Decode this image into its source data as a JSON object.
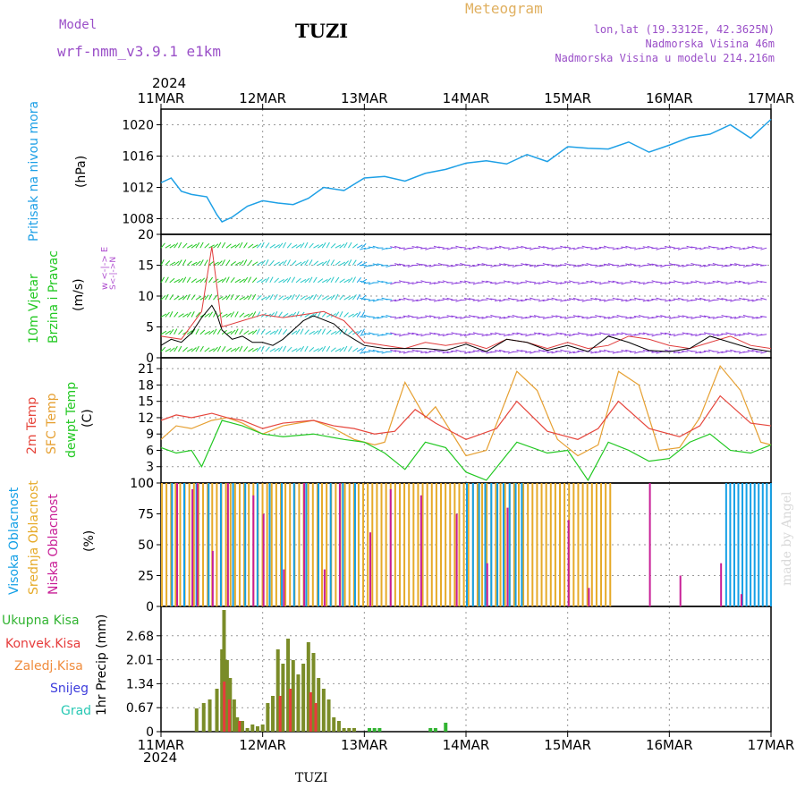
{
  "header": {
    "model_label": "Model",
    "model_name": "wrf-nmm_v3.9.1  e1km",
    "station": "TUZI",
    "meteogram": "Meteogram",
    "lonlat": "lon,lat (19.3312E, 42.3625N)",
    "elevation": "Nadmorska Visina 46m",
    "model_elevation": "Nadmorska Visina u modelu 214.216m",
    "year_top": "2024",
    "year_bottom": "2024",
    "footer_station": "TUZI",
    "watermark": "made by Angel"
  },
  "colors": {
    "pressure": "#1ea0e6",
    "wind_speed": "#000000",
    "wind_gust": "#e03c3c",
    "t2m": "#e6463c",
    "tsfc": "#e6a032",
    "dewpt": "#22c822",
    "high_cloud": "#14a0e6",
    "mid_cloud": "#e6aa28",
    "low_cloud": "#c81e96",
    "precip_total": "#32b432",
    "precip_conv": "#e63c3c",
    "precip_frozen": "#f08c3c",
    "snow": "#3c3cdc",
    "hail": "#28c8b4",
    "grid": "#999999"
  },
  "panel_labels": {
    "pressure": {
      "name": "Pritisak na nivou mora",
      "unit": "(hPa)"
    },
    "wind": {
      "name1": "10m Vjetar",
      "name2": "Brzina i Pravac",
      "unit": "(m/s)",
      "compass": "w <-|-> E",
      "compass2": "S<-|->N"
    },
    "temp": {
      "name1": "2m Temp",
      "name2": "SFC Temp",
      "name3": "dewpt Temp",
      "unit": "(C)"
    },
    "cloud": {
      "name1": "Visoka Oblacnost",
      "name2": "Srednja Oblacnost",
      "name3": "Niska Oblacnost",
      "unit": "(%)"
    },
    "precip": {
      "unit": "1hr Precip (mm)",
      "legend": [
        "Ukupna Kisa",
        "Konvek.Kisa",
        "Zaledj.Kisa",
        "Snijeg",
        "Grad"
      ]
    }
  },
  "chart_data": [
    {
      "type": "line",
      "title": "",
      "x_labels": [
        "11MAR",
        "12MAR",
        "13MAR",
        "14MAR",
        "15MAR",
        "16MAR",
        "17MAR"
      ],
      "ylabel": "(hPa)",
      "ylim": [
        1006,
        1022
      ],
      "yticks": [
        1008,
        1012,
        1016,
        1020
      ],
      "grid": true,
      "series": [
        {
          "name": "Pritisak na nivou mora",
          "x": [
            0,
            0.1,
            0.2,
            0.3,
            0.45,
            0.55,
            0.6,
            0.7,
            0.85,
            1.0,
            1.15,
            1.3,
            1.45,
            1.6,
            1.8,
            2.0,
            2.2,
            2.4,
            2.6,
            2.8,
            3.0,
            3.2,
            3.4,
            3.6,
            3.8,
            4.0,
            4.2,
            4.4,
            4.6,
            4.8,
            5.0,
            5.2,
            5.4,
            5.6,
            5.8,
            6.0
          ],
          "values": [
            1012.6,
            1013.2,
            1011.5,
            1011.1,
            1010.8,
            1008.5,
            1007.6,
            1008.2,
            1009.6,
            1010.3,
            1010.0,
            1009.8,
            1010.6,
            1012.0,
            1011.6,
            1013.2,
            1013.4,
            1012.8,
            1013.8,
            1014.3,
            1015.1,
            1015.4,
            1015.0,
            1016.2,
            1015.3,
            1017.2,
            1017.0,
            1016.9,
            1017.8,
            1016.5,
            1017.4,
            1018.4,
            1018.8,
            1020.0,
            1018.3,
            1020.7
          ]
        }
      ]
    },
    {
      "type": "line",
      "title": "",
      "ylabel": "(m/s)",
      "ylim": [
        0,
        20
      ],
      "yticks": [
        0,
        5,
        10,
        15,
        20
      ],
      "grid": true,
      "series": [
        {
          "name": "wind speed",
          "x": [
            0,
            0.1,
            0.2,
            0.3,
            0.4,
            0.5,
            0.55,
            0.6,
            0.7,
            0.8,
            0.9,
            1.0,
            1.1,
            1.2,
            1.3,
            1.4,
            1.5,
            1.7,
            1.8,
            1.9,
            2.0,
            2.2,
            2.4,
            2.6,
            2.8,
            3.0,
            3.2,
            3.4,
            3.6,
            3.8,
            4.0,
            4.2,
            4.4,
            4.6,
            4.8,
            5.0,
            5.2,
            5.4,
            5.6,
            5.8,
            6.0
          ],
          "values": [
            2.0,
            3.0,
            2.5,
            4.0,
            6.5,
            8.5,
            7.0,
            4.5,
            3.0,
            3.5,
            2.5,
            2.5,
            2.0,
            3.0,
            4.5,
            6.0,
            6.8,
            5.5,
            4.0,
            3.0,
            2.0,
            1.5,
            1.5,
            1.5,
            1.2,
            2.2,
            1.0,
            3.0,
            2.5,
            1.2,
            2.0,
            1.0,
            3.5,
            2.5,
            1.2,
            1.0,
            1.5,
            3.5,
            2.5,
            1.5,
            1.0
          ]
        },
        {
          "name": "wind gust",
          "x": [
            0,
            0.2,
            0.4,
            0.5,
            0.6,
            0.8,
            1.0,
            1.2,
            1.4,
            1.6,
            1.8,
            2.0,
            2.2,
            2.4,
            2.6,
            2.8,
            3.0,
            3.2,
            3.4,
            3.6,
            3.8,
            4.0,
            4.2,
            4.4,
            4.6,
            4.8,
            5.0,
            5.2,
            5.4,
            5.6,
            5.8,
            6.0
          ],
          "values": [
            3.5,
            3.0,
            7.5,
            18.0,
            5.0,
            6.0,
            7.0,
            6.5,
            7.0,
            7.5,
            6.0,
            2.5,
            2.0,
            1.5,
            2.5,
            2.0,
            2.5,
            1.5,
            3.0,
            2.5,
            1.5,
            2.5,
            1.5,
            2.0,
            3.5,
            3.0,
            2.0,
            1.5,
            2.5,
            3.5,
            2.0,
            1.5
          ]
        }
      ]
    },
    {
      "type": "line",
      "title": "",
      "ylabel": "(C)",
      "ylim": [
        0,
        23
      ],
      "yticks": [
        0,
        3,
        6,
        9,
        12,
        15,
        18,
        21
      ],
      "grid": true,
      "series": [
        {
          "name": "2m Temp",
          "x": [
            0,
            0.15,
            0.3,
            0.5,
            0.65,
            0.8,
            1.0,
            1.2,
            1.5,
            1.7,
            1.9,
            2.1,
            2.3,
            2.5,
            2.7,
            3.0,
            3.3,
            3.5,
            3.8,
            4.1,
            4.3,
            4.5,
            4.8,
            5.1,
            5.3,
            5.5,
            5.8,
            6.0
          ],
          "values": [
            11.5,
            12.5,
            12.0,
            12.8,
            12.0,
            11.5,
            10.0,
            11.0,
            11.5,
            10.5,
            10.0,
            9.0,
            9.5,
            13.5,
            11.0,
            8.0,
            10.0,
            15.0,
            9.5,
            8.0,
            10.0,
            15.0,
            10.0,
            8.5,
            10.5,
            16.0,
            11.0,
            10.5
          ]
        },
        {
          "name": "SFC Temp",
          "x": [
            0,
            0.15,
            0.3,
            0.5,
            0.65,
            0.8,
            1.0,
            1.2,
            1.5,
            1.7,
            1.9,
            2.1,
            2.2,
            2.4,
            2.6,
            2.7,
            3.0,
            3.2,
            3.5,
            3.7,
            3.9,
            4.1,
            4.3,
            4.5,
            4.7,
            4.9,
            5.1,
            5.3,
            5.5,
            5.7,
            5.9,
            6.0
          ],
          "values": [
            8.0,
            10.5,
            10.0,
            11.5,
            12.0,
            11.0,
            9.0,
            10.5,
            11.5,
            10.0,
            8.0,
            7.0,
            7.5,
            18.5,
            12.0,
            14.0,
            5.0,
            6.0,
            20.5,
            17.0,
            8.0,
            5.0,
            7.0,
            20.5,
            18.0,
            6.0,
            6.5,
            12.0,
            21.5,
            17.0,
            7.5,
            7.0
          ]
        },
        {
          "name": "dewpt Temp",
          "x": [
            0,
            0.15,
            0.3,
            0.4,
            0.6,
            0.8,
            1.0,
            1.2,
            1.5,
            1.8,
            2.0,
            2.2,
            2.4,
            2.6,
            2.8,
            3.0,
            3.2,
            3.5,
            3.8,
            4.0,
            4.2,
            4.4,
            4.6,
            4.8,
            5.0,
            5.2,
            5.4,
            5.6,
            5.8,
            6.0
          ],
          "values": [
            6.5,
            5.5,
            6.0,
            3.0,
            11.5,
            10.5,
            9.0,
            8.5,
            9.0,
            8.0,
            7.5,
            5.5,
            2.5,
            7.5,
            6.5,
            2.0,
            0.5,
            7.5,
            5.5,
            6.0,
            0.5,
            7.5,
            6.0,
            4.0,
            4.5,
            7.5,
            9.0,
            6.0,
            5.5,
            7.0
          ]
        }
      ]
    },
    {
      "type": "bar",
      "title": "",
      "ylabel": "(%)",
      "ylim": [
        0,
        100
      ],
      "yticks": [
        0,
        25,
        50,
        75,
        100
      ],
      "grid": true,
      "series": [
        {
          "name": "Visoka Oblacnost",
          "start": 0.1,
          "end": 2.0,
          "value": 100
        },
        {
          "name": "Srednja Oblacnost",
          "start": 0.0,
          "end": 4.45,
          "value": 100
        },
        {
          "name": "Niska Oblacnost",
          "bars_x": [
            0.15,
            0.3,
            0.35,
            0.5,
            0.65,
            0.9,
            1.0,
            1.2,
            1.4,
            1.6,
            1.75,
            2.05,
            2.25,
            2.55,
            2.9,
            3.2,
            3.4,
            4.0,
            4.2,
            4.8,
            5.1,
            5.5,
            5.7,
            5.8,
            5.9
          ],
          "values": [
            100,
            95,
            100,
            45,
            100,
            90,
            75,
            30,
            100,
            30,
            100,
            60,
            95,
            90,
            75,
            35,
            80,
            70,
            15,
            100,
            25,
            35,
            10,
            0,
            0
          ]
        },
        {
          "name": "Visoka Oblacnost late",
          "start": 3.0,
          "end": 3.55,
          "value": 100
        },
        {
          "name": "Visoka Oblacnost late2",
          "start": 5.55,
          "end": 6.0,
          "value": 100
        }
      ]
    },
    {
      "type": "bar",
      "title": "",
      "ylabel": "1hr Precip (mm)",
      "ylim": [
        0,
        3.5
      ],
      "yticks": [
        0,
        0.67,
        1.34,
        2.01,
        2.68
      ],
      "grid": true,
      "series": [
        {
          "name": "Ukupna Kisa",
          "x": [
            0.35,
            0.42,
            0.48,
            0.55,
            0.6,
            0.62,
            0.65,
            0.68,
            0.72,
            0.75,
            0.8,
            0.85,
            0.9,
            0.95,
            1.0,
            1.05,
            1.1,
            1.15,
            1.2,
            1.25,
            1.3,
            1.35,
            1.4,
            1.45,
            1.5,
            1.55,
            1.6,
            1.65,
            1.7,
            1.75,
            1.8,
            1.85,
            1.9,
            2.05,
            2.1,
            2.15,
            2.65,
            2.7,
            2.8
          ],
          "values": [
            0.65,
            0.8,
            0.9,
            1.2,
            2.3,
            3.4,
            2.0,
            1.5,
            0.9,
            0.4,
            0.3,
            0.1,
            0.2,
            0.15,
            0.2,
            0.8,
            1.0,
            2.3,
            1.9,
            2.6,
            2.0,
            1.6,
            1.9,
            2.5,
            2.2,
            1.5,
            1.2,
            0.9,
            0.4,
            0.3,
            0.1,
            0.1,
            0.1,
            0.1,
            0.1,
            0.1,
            0.1,
            0.1,
            0.25
          ]
        },
        {
          "name": "Konvek.Kisa",
          "x": [
            0.6,
            0.65,
            0.75,
            1.15,
            1.25,
            1.45,
            1.5
          ],
          "values": [
            1.4,
            0.9,
            0.3,
            1.0,
            1.2,
            1.1,
            0.8
          ]
        }
      ]
    }
  ]
}
